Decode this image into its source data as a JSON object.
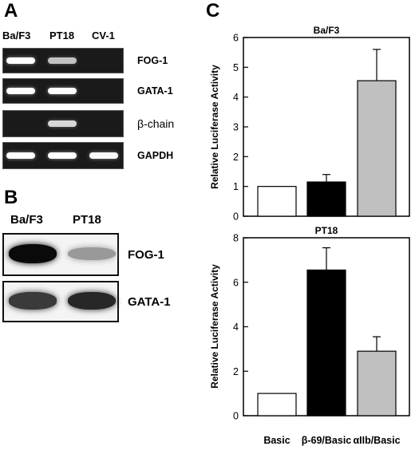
{
  "panel_a": {
    "label": "A",
    "lanes": [
      "Ba/F3",
      "PT18",
      "CV-1"
    ],
    "rows": [
      {
        "label": "FOG-1",
        "bands": [
          1.0,
          0.55,
          0.0
        ]
      },
      {
        "label": "GATA-1",
        "bands": [
          1.0,
          1.0,
          0.0
        ]
      },
      {
        "label": "β-chain",
        "bands": [
          0.0,
          0.7,
          0.0
        ]
      },
      {
        "label": "GAPDH",
        "bands": [
          1.0,
          1.0,
          0.95
        ]
      }
    ]
  },
  "panel_b": {
    "label": "B",
    "lanes": [
      "Ba/F3",
      "PT18"
    ],
    "rows": [
      {
        "label": "FOG-1",
        "bands": [
          1.0,
          0.25
        ]
      },
      {
        "label": "GATA-1",
        "bands": [
          0.75,
          0.85
        ]
      }
    ]
  },
  "panel_c": {
    "label": "C",
    "colors": {
      "basic": "#ffffff",
      "beta": "#000000",
      "alpha": "#c0c0c0"
    }
  },
  "chart_data": [
    {
      "type": "bar",
      "title": "Ba/F3",
      "ylabel": "Relative Luciferase Activity",
      "categories": [
        "Basic",
        "β-69/Basic",
        "αIIb/Basic"
      ],
      "values": [
        1.0,
        1.15,
        4.55
      ],
      "errors": [
        0,
        0.25,
        1.05
      ],
      "ylim": [
        0,
        6
      ],
      "yticks": [
        "0",
        "1",
        "2",
        "3",
        "4",
        "5",
        "6"
      ],
      "show_xticklabels": false
    },
    {
      "type": "bar",
      "title": "PT18",
      "ylabel": "Relative Luciferase Activity",
      "categories": [
        "Basic",
        "β-69/Basic",
        "αIIb/Basic"
      ],
      "values": [
        1.0,
        6.55,
        2.9
      ],
      "errors": [
        0,
        1.0,
        0.65
      ],
      "ylim": [
        0,
        8
      ],
      "yticks": [
        "0",
        "2",
        "4",
        "6",
        "8"
      ],
      "show_xticklabels": true
    }
  ]
}
